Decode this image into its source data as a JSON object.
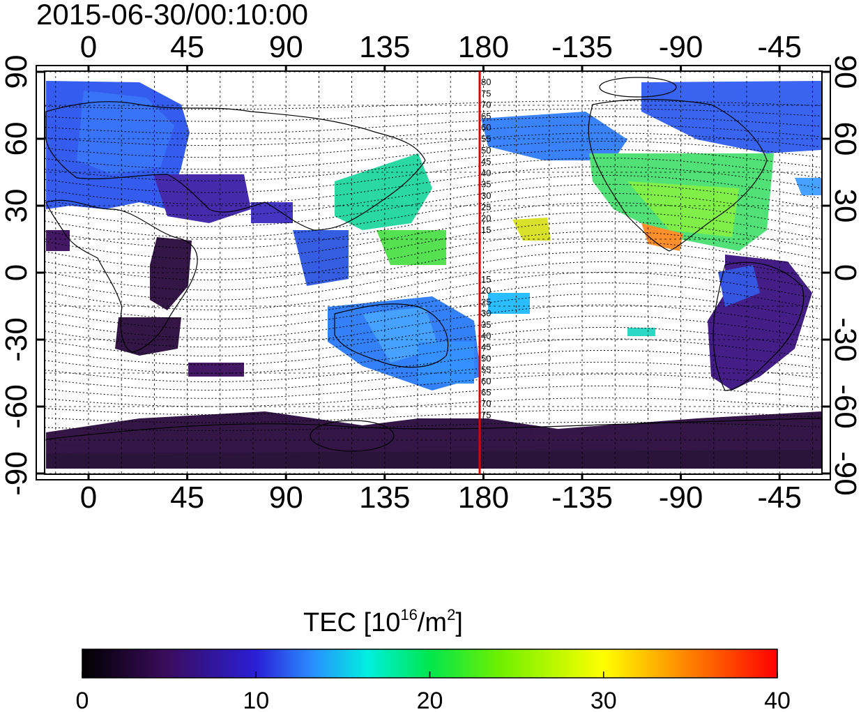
{
  "timestamp": "2015-06-30/00:10:00",
  "map": {
    "top_lon_ticks": [
      "0",
      "45",
      "90",
      "135",
      "180",
      "-135",
      "-90",
      "-45"
    ],
    "bottom_lon_ticks": [
      "0",
      "45",
      "90",
      "135",
      "180",
      "-135",
      "-90",
      "-45"
    ],
    "left_lat_ticks": [
      "90",
      "60",
      "30",
      "0",
      "-30",
      "-60",
      "-90"
    ],
    "right_lat_ticks": [
      "90",
      "60",
      "30",
      "0",
      "-30",
      "-60",
      "-90"
    ],
    "meridian_marker": {
      "longitude": 180,
      "color": "#e00000"
    },
    "meridian_labels_north": [
      "80",
      "75",
      "70",
      "65",
      "60",
      "55",
      "50",
      "45",
      "40",
      "35",
      "30",
      "25",
      "20",
      "15"
    ],
    "meridian_labels_south": [
      "15",
      "20",
      "25",
      "30",
      "35",
      "40",
      "45",
      "50",
      "55",
      "60",
      "65",
      "70",
      "75"
    ]
  },
  "colorbar": {
    "title_prefix": "TEC  [10",
    "title_sup1": "16",
    "title_mid": "/m",
    "title_sup2": "2",
    "title_suffix": "]",
    "ticks": [
      "0",
      "10",
      "20",
      "30",
      "40"
    ],
    "range": [
      0,
      40
    ],
    "colormap": [
      "#000000",
      "#3a0c5c",
      "#2a1fd6",
      "#2a8cff",
      "#00f0e0",
      "#00e64d",
      "#6ef000",
      "#ffff00",
      "#ff7a00",
      "#ff0000"
    ]
  }
}
